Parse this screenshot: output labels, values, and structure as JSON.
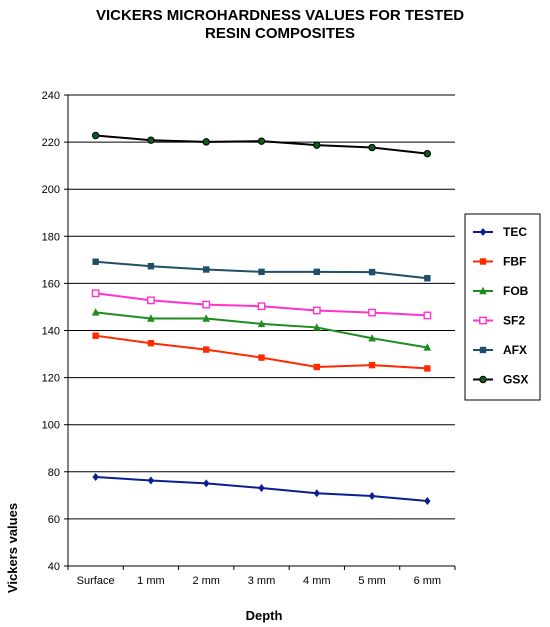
{
  "chart_data": {
    "type": "line",
    "title_lines": [
      "VICKERS MICROHARDNESS VALUES FOR TESTED",
      "RESIN COMPOSITES"
    ],
    "xlabel": "Depth",
    "ylabel": "Vickers values",
    "categories": [
      "Surface",
      "1 mm",
      "2 mm",
      "3 mm",
      "4 mm",
      "5 mm",
      "6 mm"
    ],
    "ylim": [
      40,
      240
    ],
    "yticks": [
      40,
      60,
      80,
      100,
      120,
      140,
      160,
      180,
      200,
      220,
      240
    ],
    "grid": true,
    "legend_position": "right",
    "series": [
      {
        "name": "TEC",
        "color": "#0a1f8f",
        "marker": "diamond",
        "values": [
          77.8,
          76.3,
          75.1,
          73.1,
          70.9,
          69.7,
          67.6
        ]
      },
      {
        "name": "FBF",
        "color": "#ff2a00",
        "marker": "square",
        "values": [
          137.8,
          134.6,
          131.9,
          128.5,
          124.5,
          125.3,
          123.9
        ]
      },
      {
        "name": "FOB",
        "color": "#1e8c1e",
        "marker": "triangle",
        "values": [
          147.7,
          145.1,
          145.1,
          142.8,
          141.3,
          136.7,
          132.8
        ]
      },
      {
        "name": "SF2",
        "color": "#ff33cc",
        "marker": "square-open",
        "values": [
          155.8,
          152.8,
          151.0,
          150.3,
          148.5,
          147.6,
          146.4
        ]
      },
      {
        "name": "AFX",
        "color": "#1f4e66",
        "marker": "square-dark",
        "values": [
          169.2,
          167.3,
          165.9,
          164.9,
          164.9,
          164.8,
          162.2
        ]
      },
      {
        "name": "GSX",
        "color": "#000000",
        "marker": "circle",
        "values": [
          222.8,
          220.8,
          220.1,
          220.4,
          218.7,
          217.7,
          215.1
        ]
      }
    ]
  }
}
